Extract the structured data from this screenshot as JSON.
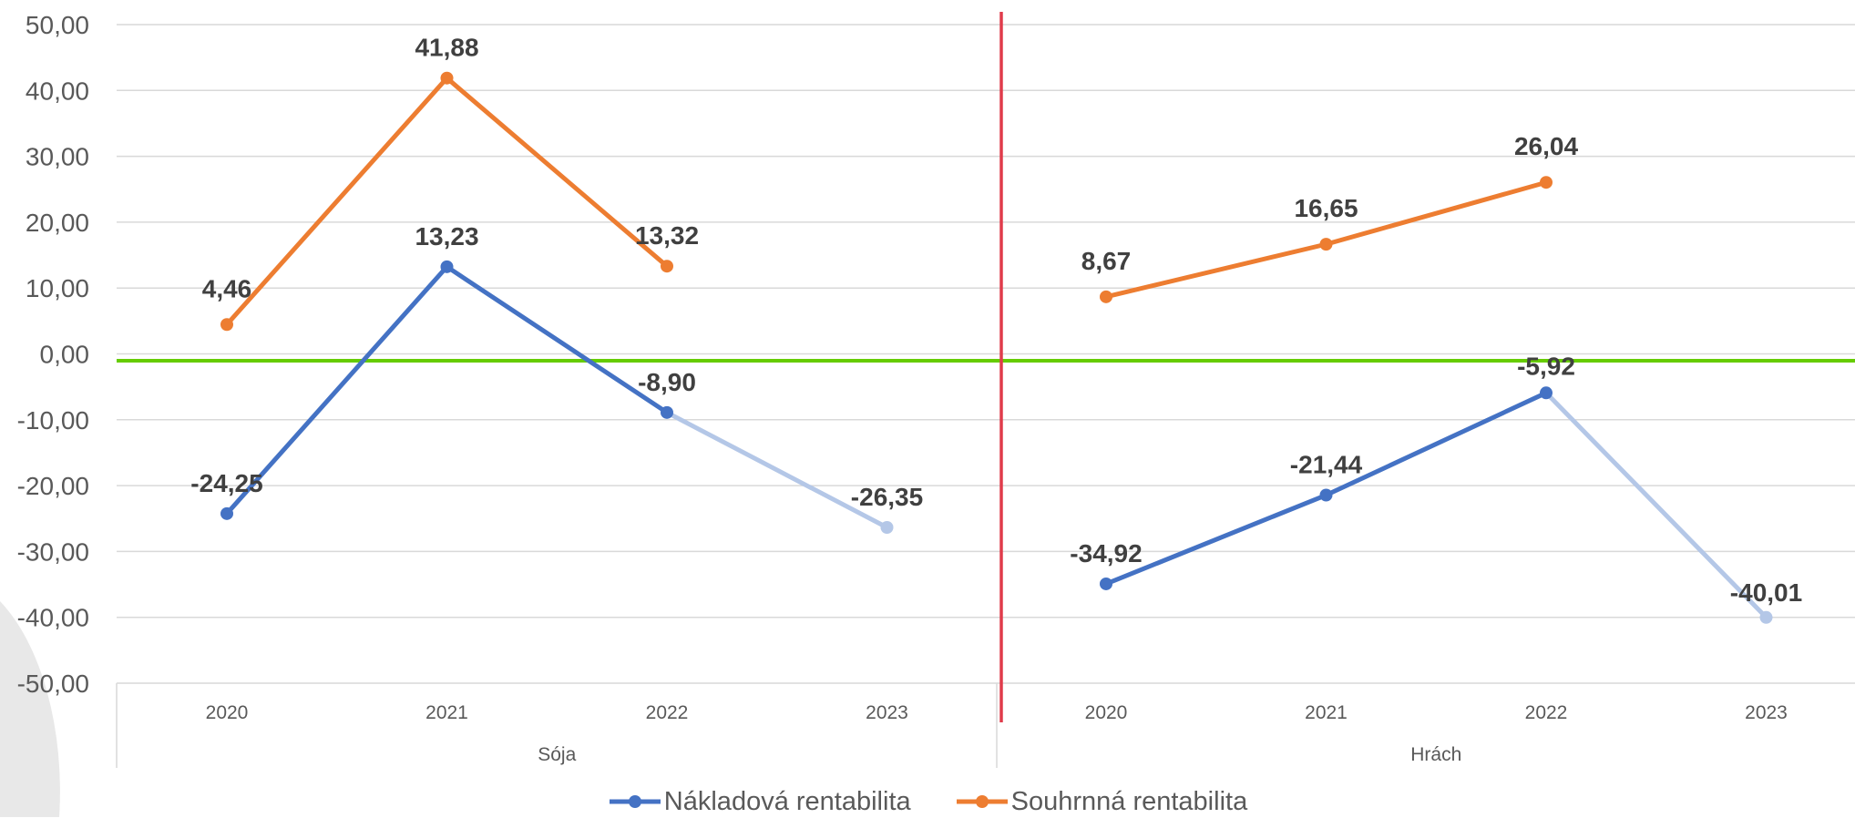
{
  "chart_data": {
    "type": "line",
    "ylim": [
      -50,
      50
    ],
    "yticks": [
      "50,00",
      "40,00",
      "30,00",
      "20,00",
      "10,00",
      "0,00",
      "-10,00",
      "-20,00",
      "-30,00",
      "-40,00",
      "-50,00"
    ],
    "grid": true,
    "legend_position": "bottom",
    "groups": [
      {
        "name": "Sója",
        "categories": [
          "2020",
          "2021",
          "2022",
          "2023"
        ]
      },
      {
        "name": "Hrách",
        "categories": [
          "2020",
          "2021",
          "2022",
          "2023"
        ]
      }
    ],
    "series": [
      {
        "name": "Nákladová rentabilita",
        "color": "#4472c4",
        "faded_color": "#b4c7e7",
        "values": [
          [
            -24.25,
            13.23,
            -8.9,
            -26.35
          ],
          [
            -34.92,
            -21.44,
            -5.92,
            -40.01
          ]
        ],
        "labels": [
          [
            "-24,25",
            "13,23",
            "-8,90",
            "-26,35"
          ],
          [
            "-34,92",
            "-21,44",
            "-5,92",
            "-40,01"
          ]
        ],
        "faded_from_index": 2
      },
      {
        "name": "Souhrnná rentabilita",
        "color": "#ed7d31",
        "values": [
          [
            4.46,
            41.88,
            13.32,
            null
          ],
          [
            8.67,
            16.65,
            26.04,
            null
          ]
        ],
        "labels": [
          [
            "4,46",
            "41,88",
            "13,32",
            ""
          ],
          [
            "8,67",
            "16,65",
            "26,04",
            ""
          ]
        ]
      }
    ],
    "zero_line_color": "#66cc00",
    "divider_color": "#e03c4b"
  }
}
